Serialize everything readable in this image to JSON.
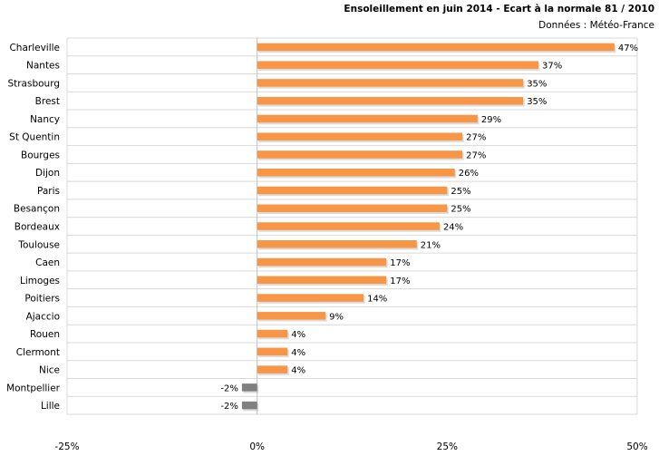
{
  "chart_data": {
    "type": "bar",
    "orientation": "horizontal",
    "title": "Ensoleillement  en juin 2014 - Ecart à la normale 81 / 2010",
    "subtitle": "Données : Météo-France",
    "categories": [
      "Charleville",
      "Nantes",
      "Strasbourg",
      "Brest",
      "Nancy",
      "St Quentin",
      "Bourges",
      "Dijon",
      "Paris",
      "Besançon",
      "Bordeaux",
      "Toulouse",
      "Caen",
      "Limoges",
      "Poitiers",
      "Ajaccio",
      "Rouen",
      "Clermont",
      "Nice",
      "Montpellier",
      "Lille"
    ],
    "values": [
      47,
      37,
      35,
      35,
      29,
      27,
      27,
      26,
      25,
      25,
      24,
      21,
      17,
      17,
      14,
      9,
      4,
      4,
      4,
      -2,
      -2
    ],
    "data_labels": [
      "47%",
      "37%",
      "35%",
      "35%",
      "29%",
      "27%",
      "27%",
      "26%",
      "25%",
      "25%",
      "24%",
      "21%",
      "17%",
      "17%",
      "14%",
      "9%",
      "4%",
      "4%",
      "4%",
      "-2%",
      "-2%"
    ],
    "xlim": [
      -25,
      50
    ],
    "x_ticks": [
      -25,
      0,
      25,
      50
    ],
    "x_tick_labels": [
      "-25%",
      "0%",
      "25%",
      "50%"
    ],
    "grid": "horizontal",
    "colors": {
      "positive": "#f79646",
      "negative": "#808080",
      "grid": "#d9d9d9",
      "axis": "#bfbfbf"
    }
  }
}
